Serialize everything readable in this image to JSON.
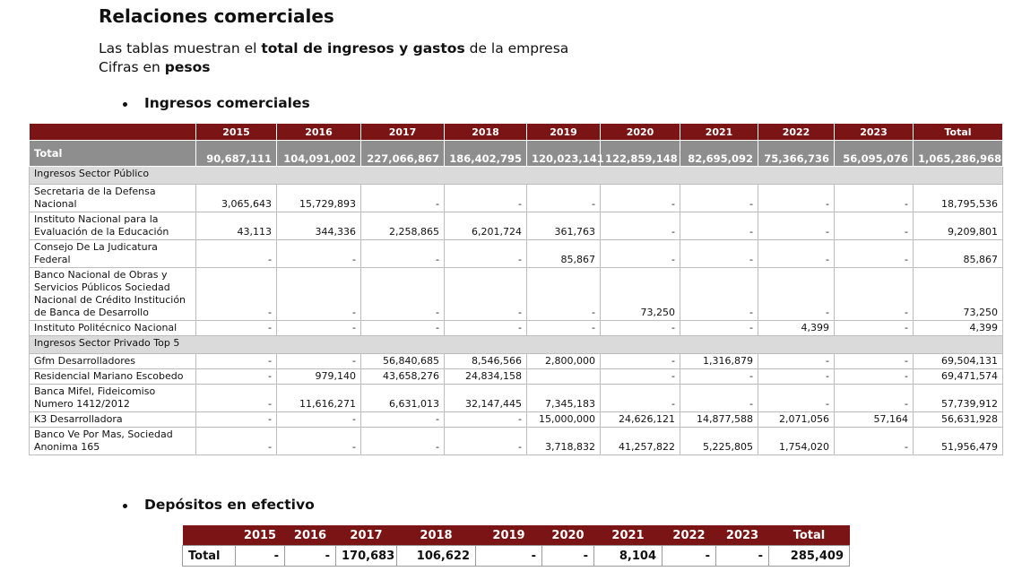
{
  "title": "Relaciones comerciales",
  "intro": {
    "line1": [
      "Las tablas muestran el ",
      "total de ingresos y gastos",
      " de la empresa"
    ],
    "line2": [
      "Cifras en ",
      "pesos"
    ]
  },
  "sections": [
    {
      "heading": "Ingresos comerciales",
      "table": {
        "columns": [
          "2015",
          "2016",
          "2017",
          "2018",
          "2019",
          "2020",
          "2021",
          "2022",
          "2023",
          "Total"
        ],
        "rows": [
          {
            "label": "Total",
            "cells": [
              "90,687,111",
              "104,091,002",
              "227,066,867",
              "186,402,795",
              "120,023,141",
              "122,859,148",
              "82,695,092",
              "75,366,736",
              "56,095,076",
              "1,065,286,968"
            ]
          },
          {
            "label": "Ingresos Sector Público"
          },
          {
            "label": "Secretaria de la Defensa Nacional",
            "cells": [
              "3,065,643",
              "15,729,893",
              "-",
              "-",
              "-",
              "-",
              "-",
              "-",
              "-",
              "18,795,536"
            ]
          },
          {
            "label": "Instituto Nacional para la Evaluación de la Educación",
            "cells": [
              "43,113",
              "344,336",
              "2,258,865",
              "6,201,724",
              "361,763",
              "-",
              "-",
              "-",
              "-",
              "9,209,801"
            ]
          },
          {
            "label": "Consejo De La Judicatura Federal",
            "cells": [
              "-",
              "-",
              "-",
              "-",
              "85,867",
              "-",
              "-",
              "-",
              "-",
              "85,867"
            ]
          },
          {
            "label": "Banco Nacional de Obras y Servicios Públicos Sociedad Nacional de Crédito Institución de Banca de Desarrollo",
            "cells": [
              "-",
              "-",
              "-",
              "-",
              "-",
              "73,250",
              "-",
              "-",
              "-",
              "73,250"
            ]
          },
          {
            "label": "Instituto Politécnico Nacional",
            "cells": [
              "-",
              "-",
              "-",
              "-",
              "-",
              "-",
              "-",
              "4,399",
              "-",
              "4,399"
            ]
          },
          {
            "label": "Ingresos Sector Privado Top 5"
          },
          {
            "label": "Gfm Desarrolladores",
            "cells": [
              "-",
              "-",
              "56,840,685",
              "8,546,566",
              "2,800,000",
              "-",
              "1,316,879",
              "-",
              "-",
              "69,504,131"
            ]
          },
          {
            "label": "Residencial Mariano Escobedo",
            "cells": [
              "-",
              "979,140",
              "43,658,276",
              "24,834,158",
              null,
              "-",
              "-",
              "-",
              "-",
              "69,471,574"
            ]
          },
          {
            "label": "Banca Mifel, Fideicomiso Numero 1412/2012",
            "cells": [
              "-",
              "11,616,271",
              "6,631,013",
              "32,147,445",
              "7,345,183",
              "-",
              "-",
              "-",
              "-",
              "57,739,912"
            ]
          },
          {
            "label": "K3 Desarrolladora",
            "cells": [
              "-",
              "-",
              "-",
              "-",
              "15,000,000",
              "24,626,121",
              "14,877,588",
              "2,071,056",
              "57,164",
              "56,631,928"
            ]
          },
          {
            "label": "Banco Ve Por Mas, Sociedad Anonima 165",
            "cells": [
              "-",
              "-",
              "-",
              "-",
              "3,718,832",
              "41,257,822",
              "5,225,805",
              "1,754,020",
              "-",
              "51,956,479"
            ]
          }
        ]
      }
    },
    {
      "heading": "Depósitos en efectivo",
      "table": {
        "columns": [
          "2015",
          "2016",
          "2017",
          "2018",
          "2019",
          "2020",
          "2021",
          "2022",
          "2023",
          "Total"
        ],
        "rows": [
          {
            "label": "Total",
            "cells": [
              "-",
              "-",
              "170,683",
              "106,622",
              "-",
              "-",
              "8,104",
              "-",
              "-",
              "285,409"
            ]
          }
        ]
      }
    }
  ]
}
